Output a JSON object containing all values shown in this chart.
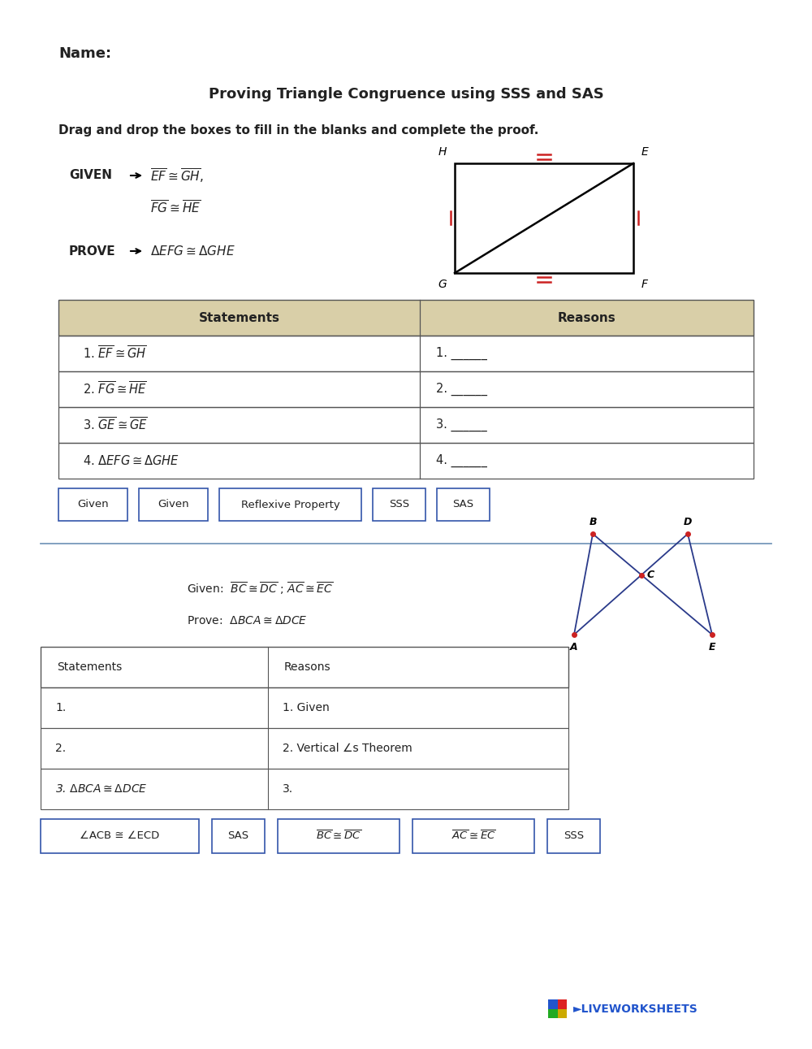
{
  "title": "Proving Triangle Congruence using SSS and SAS",
  "name_label": "Name:",
  "instruction": "Drag and drop the boxes to fill in the blanks and complete the proof.",
  "table1_headers": [
    "Statements",
    "Reasons"
  ],
  "table1_rows": [
    [
      "1. $\\overline{EF} \\cong \\overline{GH}$",
      "1. ______"
    ],
    [
      "2. $\\overline{FG} \\cong \\overline{HE}$",
      "2. ______"
    ],
    [
      "3. $\\overline{GE} \\cong \\overline{GE}$",
      "3. ______"
    ],
    [
      "4. $\\Delta EFG \\cong \\Delta GHE$",
      "4. ______"
    ]
  ],
  "drag_boxes1": [
    "Given",
    "Given",
    "Reflexive Property",
    "SSS",
    "SAS"
  ],
  "drag_box1_widths": [
    0.85,
    0.85,
    1.75,
    0.65,
    0.65
  ],
  "table2_headers": [
    "Statements",
    "Reasons"
  ],
  "table2_rows": [
    [
      "1.",
      "1. Given"
    ],
    [
      "2.",
      "2. Vertical ∠s Theorem"
    ],
    [
      "3. $\\Delta BCA \\cong \\Delta DCE$",
      "3."
    ]
  ],
  "drag_boxes2_labels": [
    "∠ACB ≅ ∠ECD",
    "SAS",
    "$\\overline{BC} \\cong \\overline{DC}$",
    "$\\overline{AC} \\cong \\overline{EC}$",
    "SSS"
  ],
  "drag_box2_widths": [
    1.95,
    0.65,
    1.5,
    1.5,
    0.65
  ],
  "bg_color": "#ffffff",
  "table_header_color": "#d9cfa8",
  "table_border_color": "#555555",
  "drag_box_border_color": "#3355aa",
  "text_color": "#222222",
  "section_line_color": "#7799bb",
  "red_tick": "#cc2222",
  "blue_diagram": "#2a3a8a",
  "red_dot": "#cc2222"
}
